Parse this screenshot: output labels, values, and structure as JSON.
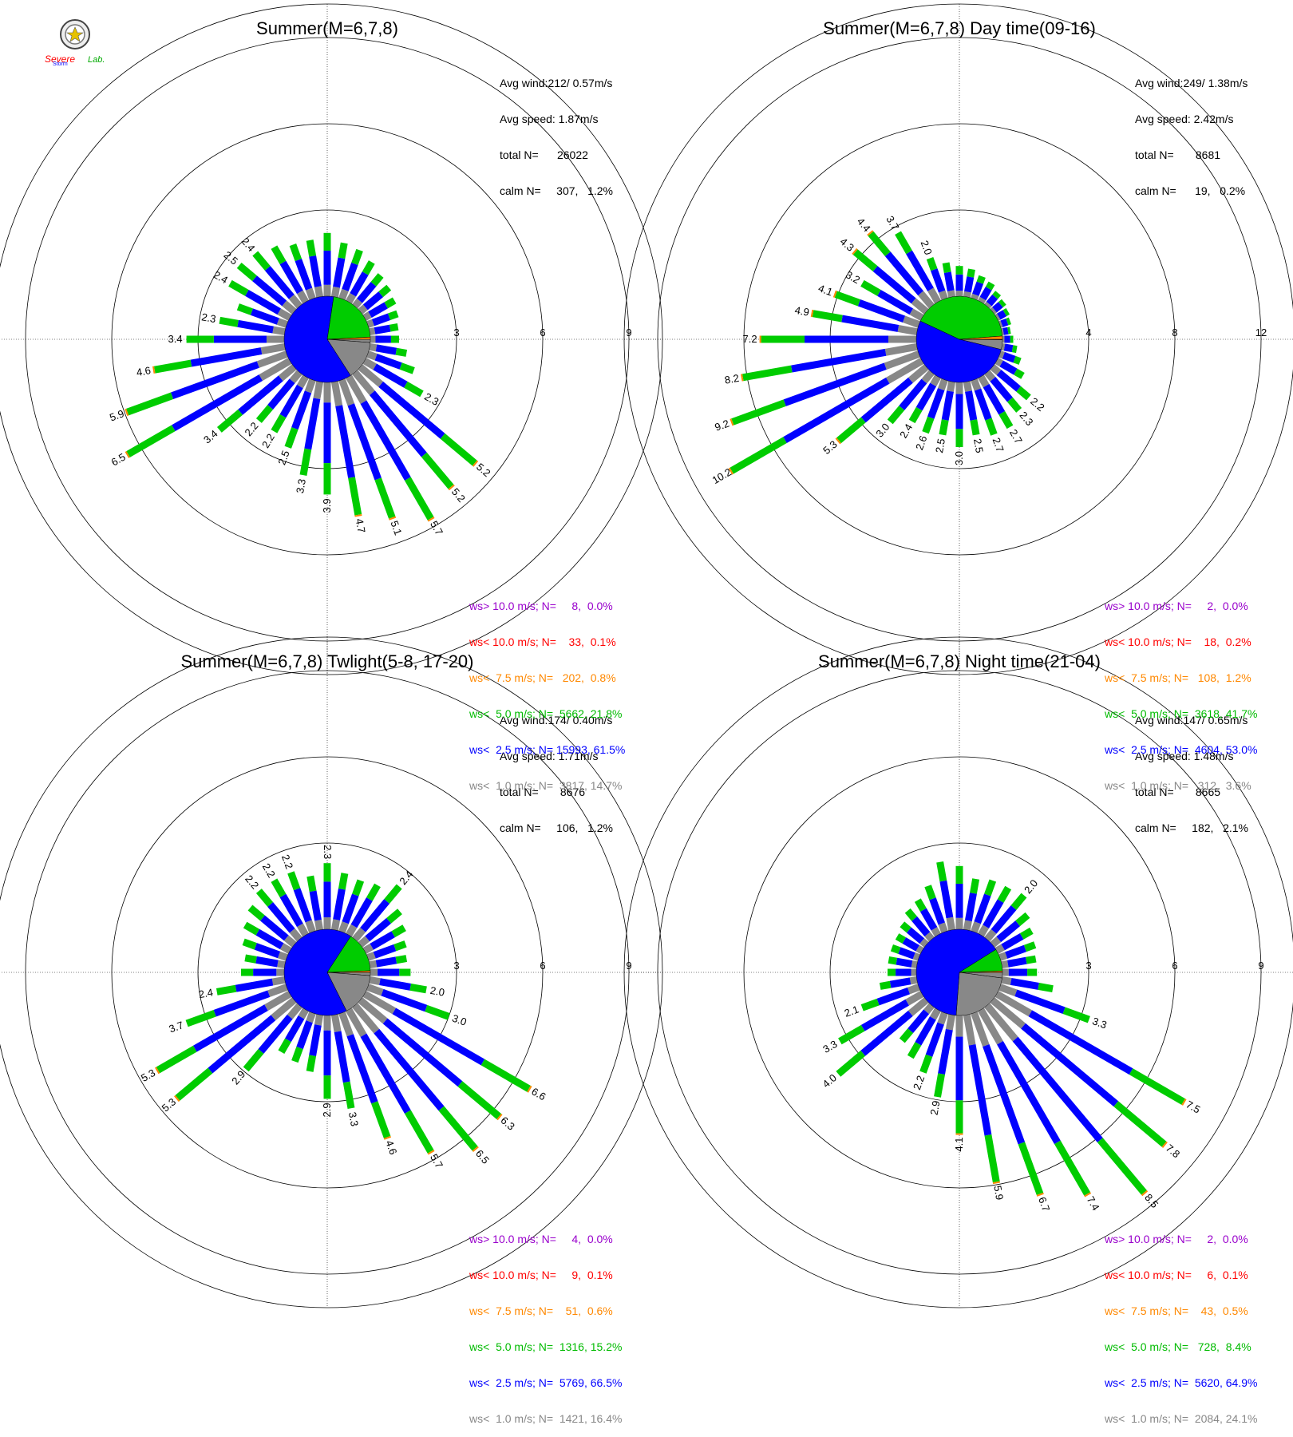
{
  "logo": {
    "text_top": "Severe",
    "text_bottom": "Storm",
    "text_lab": "Lab."
  },
  "colors": {
    "calm": "#888888",
    "lt1": "#888888",
    "lt25": "#0000ff",
    "lt5": "#00cc00",
    "lt75": "#ff8800",
    "lt10": "#ff0000",
    "gt10": "#9900cc",
    "grid": "#000000"
  },
  "chart_data": [
    {
      "type": "windrose",
      "title": "Summer(M=6,7,8)",
      "ring_labels": [
        "3",
        "6",
        "9"
      ],
      "ring_max": 9,
      "stats": {
        "avg_wind": "Avg wind:212/ 0.57m/s",
        "avg_speed": "Avg speed: 1.87m/s",
        "total": "total N=      26022",
        "calm": "calm N=     307,   1.2%"
      },
      "legend": [
        "ws> 10.0 m/s; N=     8,  0.0%",
        "ws< 10.0 m/s; N=    33,  0.1%",
        "ws<  7.5 m/s; N=   202,  0.8%",
        "ws<  5.0 m/s; N=  5662, 21.8%",
        "ws<  2.5 m/s; N= 15993, 61.5%",
        "ws<  1.0 m/s; N=  3817, 14.7%"
      ],
      "pie": [
        1.2,
        14.7,
        61.5,
        21.8,
        0.8
      ],
      "bars": [
        {
          "dir": 0,
          "total": 2.2,
          "label": ""
        },
        {
          "dir": 10,
          "total": 1.9,
          "label": ""
        },
        {
          "dir": 20,
          "total": 1.8,
          "label": ""
        },
        {
          "dir": 30,
          "total": 1.6,
          "label": ""
        },
        {
          "dir": 40,
          "total": 1.4,
          "label": ""
        },
        {
          "dir": 50,
          "total": 1.3,
          "label": ""
        },
        {
          "dir": 60,
          "total": 1.2,
          "label": ""
        },
        {
          "dir": 70,
          "total": 1.1,
          "label": ""
        },
        {
          "dir": 80,
          "total": 1.0,
          "label": ""
        },
        {
          "dir": 90,
          "total": 1.0,
          "label": ""
        },
        {
          "dir": 100,
          "total": 1.3,
          "label": ""
        },
        {
          "dir": 110,
          "total": 1.7,
          "label": ""
        },
        {
          "dir": 120,
          "total": 2.3,
          "label": "2.3"
        },
        {
          "dir": 130,
          "total": 5.2,
          "label": "5.2"
        },
        {
          "dir": 140,
          "total": 5.2,
          "label": "5.2"
        },
        {
          "dir": 150,
          "total": 5.7,
          "label": "5.7"
        },
        {
          "dir": 160,
          "total": 5.1,
          "label": "5.1"
        },
        {
          "dir": 170,
          "total": 4.7,
          "label": "4.7"
        },
        {
          "dir": 180,
          "total": 3.9,
          "label": "3.9"
        },
        {
          "dir": 190,
          "total": 3.3,
          "label": "3.3"
        },
        {
          "dir": 200,
          "total": 2.5,
          "label": "2.5"
        },
        {
          "dir": 210,
          "total": 2.2,
          "label": "2.2"
        },
        {
          "dir": 220,
          "total": 2.2,
          "label": "2.2"
        },
        {
          "dir": 230,
          "total": 3.4,
          "label": "3.4"
        },
        {
          "dir": 240,
          "total": 6.5,
          "label": "6.5"
        },
        {
          "dir": 250,
          "total": 5.9,
          "label": "5.9"
        },
        {
          "dir": 260,
          "total": 4.6,
          "label": "4.6"
        },
        {
          "dir": 270,
          "total": 3.4,
          "label": "3.4"
        },
        {
          "dir": 280,
          "total": 2.3,
          "label": "2.3"
        },
        {
          "dir": 290,
          "total": 1.8,
          "label": ""
        },
        {
          "dir": 300,
          "total": 2.4,
          "label": "2.4"
        },
        {
          "dir": 310,
          "total": 2.5,
          "label": "2.5"
        },
        {
          "dir": 320,
          "total": 2.4,
          "label": "2.4"
        },
        {
          "dir": 330,
          "total": 2.2,
          "label": ""
        },
        {
          "dir": 340,
          "total": 2.0,
          "label": ""
        },
        {
          "dir": 350,
          "total": 2.0,
          "label": ""
        }
      ]
    },
    {
      "type": "windrose",
      "title": "Summer(M=6,7,8) Day time(09-16)",
      "ring_labels": [
        "4",
        "8",
        "12"
      ],
      "ring_max": 12,
      "stats": {
        "avg_wind": "Avg wind:249/ 1.38m/s",
        "avg_speed": "Avg speed: 2.42m/s",
        "total": "total N=       8681",
        "calm": "calm N=      19,   0.2%"
      },
      "legend": [
        "ws> 10.0 m/s; N=     2,  0.0%",
        "ws< 10.0 m/s; N=    18,  0.2%",
        "ws<  7.5 m/s; N=   108,  1.2%",
        "ws<  5.0 m/s; N=  3618, 41.7%",
        "ws<  2.5 m/s; N=  4604, 53.0%",
        "ws<  1.0 m/s; N=   312,  3.6%"
      ],
      "pie": [
        0.2,
        3.6,
        53.0,
        41.7,
        1.2
      ],
      "bars": [
        {
          "dir": 0,
          "total": 1.4,
          "label": ""
        },
        {
          "dir": 10,
          "total": 1.3,
          "label": ""
        },
        {
          "dir": 20,
          "total": 1.1,
          "label": ""
        },
        {
          "dir": 30,
          "total": 1.0,
          "label": ""
        },
        {
          "dir": 40,
          "total": 0.8,
          "label": ""
        },
        {
          "dir": 50,
          "total": 0.7,
          "label": ""
        },
        {
          "dir": 60,
          "total": 0.6,
          "label": ""
        },
        {
          "dir": 70,
          "total": 0.5,
          "label": ""
        },
        {
          "dir": 80,
          "total": 0.4,
          "label": ""
        },
        {
          "dir": 90,
          "total": 0.5,
          "label": ""
        },
        {
          "dir": 100,
          "total": 0.7,
          "label": ""
        },
        {
          "dir": 110,
          "total": 1.0,
          "label": ""
        },
        {
          "dir": 120,
          "total": 1.4,
          "label": ""
        },
        {
          "dir": 130,
          "total": 2.2,
          "label": "2.2"
        },
        {
          "dir": 140,
          "total": 2.3,
          "label": "2.3"
        },
        {
          "dir": 150,
          "total": 2.7,
          "label": "2.7"
        },
        {
          "dir": 160,
          "total": 2.7,
          "label": "2.7"
        },
        {
          "dir": 170,
          "total": 2.5,
          "label": "2.5"
        },
        {
          "dir": 180,
          "total": 3.0,
          "label": "3.0"
        },
        {
          "dir": 190,
          "total": 2.5,
          "label": "2.5"
        },
        {
          "dir": 200,
          "total": 2.6,
          "label": "2.6"
        },
        {
          "dir": 210,
          "total": 2.4,
          "label": "2.4"
        },
        {
          "dir": 220,
          "total": 3.0,
          "label": "3.0"
        },
        {
          "dir": 230,
          "total": 5.3,
          "label": "5.3"
        },
        {
          "dir": 240,
          "total": 10.2,
          "label": "10.2"
        },
        {
          "dir": 250,
          "total": 9.2,
          "label": "9.2"
        },
        {
          "dir": 260,
          "total": 8.2,
          "label": "8.2"
        },
        {
          "dir": 270,
          "total": 7.2,
          "label": "7.2"
        },
        {
          "dir": 280,
          "total": 4.9,
          "label": "4.9"
        },
        {
          "dir": 290,
          "total": 4.1,
          "label": "4.1"
        },
        {
          "dir": 300,
          "total": 3.2,
          "label": "3.2"
        },
        {
          "dir": 310,
          "total": 4.3,
          "label": "4.3"
        },
        {
          "dir": 320,
          "total": 4.4,
          "label": "4.4"
        },
        {
          "dir": 330,
          "total": 3.7,
          "label": "3.7"
        },
        {
          "dir": 340,
          "total": 2.0,
          "label": "2.0"
        },
        {
          "dir": 350,
          "total": 1.6,
          "label": ""
        }
      ]
    },
    {
      "type": "windrose",
      "title": "Summer(M=6,7,8) Twlight(5-8, 17-20)",
      "ring_labels": [
        "3",
        "6",
        "9"
      ],
      "ring_max": 9,
      "stats": {
        "avg_wind": "Avg wind:174/ 0.40m/s",
        "avg_speed": "Avg speed: 1.71m/s",
        "total": "total N=       8676",
        "calm": "calm N=     106,   1.2%"
      },
      "legend": [
        "ws> 10.0 m/s; N=     4,  0.0%",
        "ws< 10.0 m/s; N=     9,  0.1%",
        "ws<  7.5 m/s; N=    51,  0.6%",
        "ws<  5.0 m/s; N=  1316, 15.2%",
        "ws<  2.5 m/s; N=  5769, 66.5%",
        "ws<  1.0 m/s; N=  1421, 16.4%"
      ],
      "pie": [
        1.2,
        16.4,
        66.5,
        15.2,
        0.6
      ],
      "bars": [
        {
          "dir": 0,
          "total": 2.3,
          "label": "2.3"
        },
        {
          "dir": 10,
          "total": 2.0,
          "label": ""
        },
        {
          "dir": 20,
          "total": 1.9,
          "label": ""
        },
        {
          "dir": 30,
          "total": 2.0,
          "label": ""
        },
        {
          "dir": 40,
          "total": 2.4,
          "label": "2.4"
        },
        {
          "dir": 50,
          "total": 1.8,
          "label": ""
        },
        {
          "dir": 60,
          "total": 1.6,
          "label": ""
        },
        {
          "dir": 70,
          "total": 1.4,
          "label": ""
        },
        {
          "dir": 80,
          "total": 1.3,
          "label": ""
        },
        {
          "dir": 90,
          "total": 1.4,
          "label": ""
        },
        {
          "dir": 100,
          "total": 2.0,
          "label": "2.0"
        },
        {
          "dir": 110,
          "total": 3.0,
          "label": "3.0"
        },
        {
          "dir": 120,
          "total": 6.6,
          "label": "6.6"
        },
        {
          "dir": 130,
          "total": 6.3,
          "label": "6.3"
        },
        {
          "dir": 140,
          "total": 6.5,
          "label": "6.5"
        },
        {
          "dir": 150,
          "total": 5.7,
          "label": "5.7"
        },
        {
          "dir": 160,
          "total": 4.6,
          "label": "4.6"
        },
        {
          "dir": 170,
          "total": 3.3,
          "label": "3.3"
        },
        {
          "dir": 180,
          "total": 2.9,
          "label": "2.9"
        },
        {
          "dir": 190,
          "total": 2.0,
          "label": ""
        },
        {
          "dir": 200,
          "total": 1.8,
          "label": ""
        },
        {
          "dir": 210,
          "total": 1.7,
          "label": ""
        },
        {
          "dir": 220,
          "total": 2.9,
          "label": "2.9"
        },
        {
          "dir": 230,
          "total": 5.3,
          "label": "5.3"
        },
        {
          "dir": 240,
          "total": 5.3,
          "label": "5.3"
        },
        {
          "dir": 250,
          "total": 3.7,
          "label": "3.7"
        },
        {
          "dir": 260,
          "total": 2.4,
          "label": "2.4"
        },
        {
          "dir": 270,
          "total": 1.5,
          "label": ""
        },
        {
          "dir": 280,
          "total": 1.4,
          "label": ""
        },
        {
          "dir": 290,
          "total": 1.6,
          "label": ""
        },
        {
          "dir": 300,
          "total": 1.8,
          "label": ""
        },
        {
          "dir": 310,
          "total": 2.0,
          "label": ""
        },
        {
          "dir": 320,
          "total": 2.2,
          "label": "2.2"
        },
        {
          "dir": 330,
          "total": 2.2,
          "label": "2.2"
        },
        {
          "dir": 340,
          "total": 2.2,
          "label": "2.2"
        },
        {
          "dir": 350,
          "total": 1.9,
          "label": ""
        }
      ]
    },
    {
      "type": "windrose",
      "title": "Summer(M=6,7,8) Night time(21-04)",
      "ring_labels": [
        "3",
        "6",
        "9"
      ],
      "ring_max": 9,
      "stats": {
        "avg_wind": "Avg wind:147/ 0.65m/s",
        "avg_speed": "Avg speed: 1.48m/s",
        "total": "total N=       8665",
        "calm": "calm N=     182,   2.1%"
      },
      "legend": [
        "ws> 10.0 m/s; N=     2,  0.0%",
        "ws< 10.0 m/s; N=     6,  0.1%",
        "ws<  7.5 m/s; N=    43,  0.5%",
        "ws<  5.0 m/s; N=   728,  8.4%",
        "ws<  2.5 m/s; N=  5620, 64.9%",
        "ws<  1.0 m/s; N=  2084, 24.1%"
      ],
      "pie": [
        2.1,
        24.1,
        64.9,
        8.4,
        0.5
      ],
      "bars": [
        {
          "dir": 0,
          "total": 2.2,
          "label": ""
        },
        {
          "dir": 10,
          "total": 1.8,
          "label": ""
        },
        {
          "dir": 20,
          "total": 1.9,
          "label": ""
        },
        {
          "dir": 30,
          "total": 1.9,
          "label": ""
        },
        {
          "dir": 40,
          "total": 2.0,
          "label": "2.0"
        },
        {
          "dir": 50,
          "total": 1.6,
          "label": ""
        },
        {
          "dir": 60,
          "total": 1.4,
          "label": ""
        },
        {
          "dir": 70,
          "total": 1.3,
          "label": ""
        },
        {
          "dir": 80,
          "total": 1.2,
          "label": ""
        },
        {
          "dir": 90,
          "total": 1.2,
          "label": ""
        },
        {
          "dir": 100,
          "total": 1.8,
          "label": ""
        },
        {
          "dir": 110,
          "total": 3.3,
          "label": "3.3"
        },
        {
          "dir": 120,
          "total": 7.5,
          "label": "7.5"
        },
        {
          "dir": 130,
          "total": 7.8,
          "label": "7.8"
        },
        {
          "dir": 140,
          "total": 8.5,
          "label": "8.5"
        },
        {
          "dir": 150,
          "total": 7.4,
          "label": "7.4"
        },
        {
          "dir": 160,
          "total": 6.7,
          "label": "6.7"
        },
        {
          "dir": 170,
          "total": 5.9,
          "label": "5.9"
        },
        {
          "dir": 180,
          "total": 4.1,
          "label": "4.1"
        },
        {
          "dir": 190,
          "total": 2.9,
          "label": "2.9"
        },
        {
          "dir": 200,
          "total": 2.2,
          "label": "2.2"
        },
        {
          "dir": 210,
          "total": 1.9,
          "label": ""
        },
        {
          "dir": 220,
          "total": 1.6,
          "label": ""
        },
        {
          "dir": 230,
          "total": 4.0,
          "label": "4.0"
        },
        {
          "dir": 240,
          "total": 3.3,
          "label": "3.3"
        },
        {
          "dir": 250,
          "total": 2.1,
          "label": "2.1"
        },
        {
          "dir": 260,
          "total": 1.3,
          "label": ""
        },
        {
          "dir": 270,
          "total": 1.0,
          "label": ""
        },
        {
          "dir": 280,
          "total": 1.0,
          "label": ""
        },
        {
          "dir": 290,
          "total": 1.0,
          "label": ""
        },
        {
          "dir": 300,
          "total": 1.0,
          "label": ""
        },
        {
          "dir": 310,
          "total": 1.1,
          "label": ""
        },
        {
          "dir": 320,
          "total": 1.3,
          "label": ""
        },
        {
          "dir": 330,
          "total": 1.4,
          "label": ""
        },
        {
          "dir": 340,
          "total": 1.7,
          "label": ""
        },
        {
          "dir": 350,
          "total": 2.4,
          "label": ""
        }
      ]
    }
  ]
}
